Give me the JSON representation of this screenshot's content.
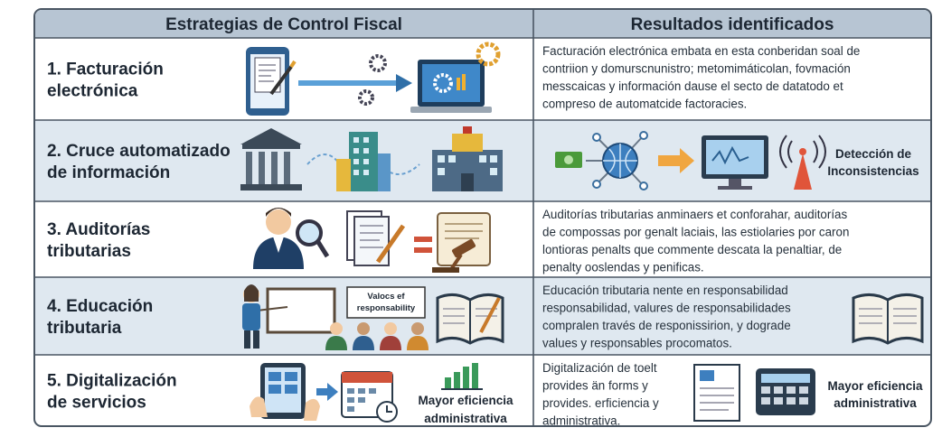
{
  "header": {
    "columns": [
      "Estrategias de Control Fiscal",
      "Resultados identificados"
    ]
  },
  "rows": [
    {
      "strategy": [
        "1. Facturación",
        "electrónica"
      ],
      "result": [
        "Facturación electrónica embata en esta conberidan soal de",
        "contriion y domurscnunistro; metomimáticolan, fovmación",
        "messcaicas y información dause el secto de datatodo et",
        "compreso de automatcide factoracies."
      ]
    },
    {
      "strategy": [
        "2. Cruce automatizado",
        "de información"
      ],
      "result_label": [
        "Detección de",
        "Inconsistencias"
      ]
    },
    {
      "strategy": [
        "3. Auditorías",
        "tributarias"
      ],
      "result": [
        "Auditorías tributarias anminaers et conforahar, auditorías",
        "de compossas por genalt laciais, las estiolaries por caron",
        "lontioras penalts que commente descata la penaltiar, de",
        "penalty ooslendas y penificas."
      ]
    },
    {
      "strategy": [
        "4. Educación",
        "tributaria"
      ],
      "board_text": [
        "Valocs ef",
        "responsability"
      ],
      "result": [
        "Educación tributaria nente en responsabilidad",
        "responsabilidad, valures de responsabilidades",
        "compralen través de responissirion, y dograde",
        "values y responsables procomatos."
      ]
    },
    {
      "strategy": [
        "5. Digitalización",
        "de servicios"
      ],
      "strategy_label": [
        "Mayor eficiencia",
        "administrativa"
      ],
      "result": [
        "Digitalización de toelt",
        "provides än forms y",
        "provides. erficiencia y",
        "administrativa."
      ],
      "result_label": [
        "Mayor eficiencia",
        "administrativa"
      ]
    }
  ]
}
